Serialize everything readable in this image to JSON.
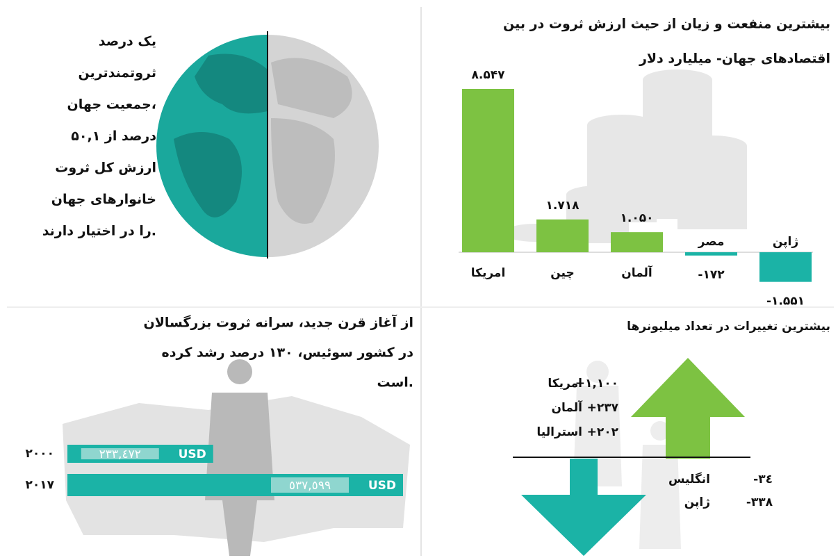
{
  "globe_panel": {
    "text_lines": [
      "یک درصد",
      "ثروتمندترین",
      "جمعیت جهان،",
      "۵۰,۱ درصد از",
      "ارزش کل ثروت",
      "خانوارهای جهان",
      "را در اختیار دارند."
    ]
  },
  "chart_data": [
    {
      "type": "bar",
      "title": [
        "بیشترین منفعت و زیان از حیث ارزش ثروت در بین",
        "اقتصادهای جهان- میلیارد دلار"
      ],
      "categories": [
        "امریکا",
        "چین",
        "آلمان",
        "مصر",
        "ژاپن"
      ],
      "values": [
        8547,
        1718,
        1050,
        -172,
        -1551
      ],
      "value_labels": [
        "۸.۵۴۷",
        "۱.۷۱۸",
        "۱.۰۵۰",
        "-۱۷۲",
        "-۱.۵۵۱"
      ],
      "colors": {
        "positive": "#7dc242",
        "negative": "#1bb3a6"
      }
    },
    {
      "type": "hbar",
      "title": [
        "از آغاز قرن جدید، سرانه ثروت بزرگسالان",
        "در کشور سوئیس، ۱۳۰ درصد رشد کرده",
        "است."
      ],
      "categories": [
        "۲۰۰۰",
        "۲۰۱۷"
      ],
      "values": [
        233472,
        537599
      ],
      "value_labels": [
        "۲۳۳,٤٧٢",
        "٥٣٧,٥٩٩"
      ],
      "unit": "USD",
      "color": "#1bb3a6"
    }
  ],
  "millionaires": {
    "title": "بیشترین تغییرات در تعداد میلیونرها",
    "gains": [
      {
        "country": "امریکا",
        "change": "+۱,۱۰۰"
      },
      {
        "country": "آلمان",
        "change": "+۲۳۷"
      },
      {
        "country": "استرالیا",
        "change": "+۲۰۲"
      }
    ],
    "losses": [
      {
        "country": "انگلیس",
        "change": "-۳٤"
      },
      {
        "country": "ژاپن",
        "change": "-۳۳۸"
      }
    ]
  }
}
